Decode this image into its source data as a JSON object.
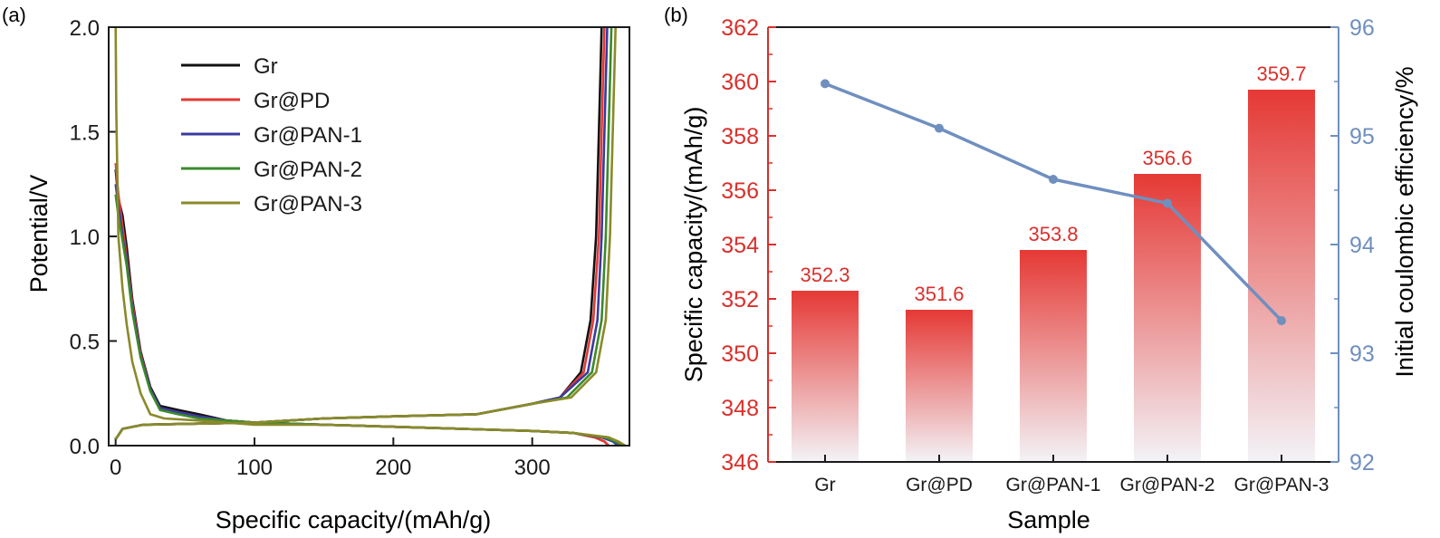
{
  "colors": {
    "axis": "#1a1a1a",
    "red": "#d9302c",
    "bar_top": "#e53935",
    "bar_bottom": "#f3f3f7",
    "blue": "#6f8fbf"
  },
  "chart_data": [
    {
      "type": "line",
      "panel_label": "(a)",
      "title": "",
      "xlabel": "Specific capacity/(mAh/g)",
      "ylabel": "Potential/V",
      "xlim": [
        -5,
        370
      ],
      "ylim": [
        0,
        2.0
      ],
      "xticks": [
        0,
        100,
        200,
        300
      ],
      "xtick_labels": [
        "0",
        "100",
        "200",
        "300"
      ],
      "yticks": [
        0,
        0.5,
        1.0,
        1.5,
        2.0
      ],
      "ytick_labels": [
        "0.0",
        "0.5",
        "1.0",
        "1.5",
        "2.0"
      ],
      "legend_position": "upper-left",
      "series": [
        {
          "name": "Gr",
          "color": "#111111",
          "discharge": [
            [
              0,
              1.32
            ],
            [
              2,
              1.18
            ],
            [
              5,
              1.1
            ],
            [
              8,
              0.95
            ],
            [
              12,
              0.7
            ],
            [
              18,
              0.45
            ],
            [
              25,
              0.28
            ],
            [
              32,
              0.19
            ],
            [
              45,
              0.17
            ],
            [
              60,
              0.15
            ],
            [
              80,
              0.12
            ],
            [
              100,
              0.11
            ],
            [
              150,
              0.1
            ],
            [
              200,
              0.09
            ],
            [
              250,
              0.08
            ],
            [
              300,
              0.07
            ],
            [
              330,
              0.06
            ],
            [
              345,
              0.04
            ],
            [
              352,
              0.02
            ],
            [
              355,
              0.0
            ]
          ],
          "charge": [
            [
              0,
              0.03
            ],
            [
              5,
              0.08
            ],
            [
              20,
              0.1
            ],
            [
              60,
              0.105
            ],
            [
              100,
              0.11
            ],
            [
              150,
              0.13
            ],
            [
              200,
              0.14
            ],
            [
              260,
              0.15
            ],
            [
              300,
              0.2
            ],
            [
              320,
              0.23
            ],
            [
              335,
              0.35
            ],
            [
              342,
              0.6
            ],
            [
              346,
              1.0
            ],
            [
              348,
              1.5
            ],
            [
              350,
              2.0
            ]
          ]
        },
        {
          "name": "Gr@PD",
          "color": "#e53935",
          "discharge": [
            [
              0,
              1.35
            ],
            [
              2,
              1.2
            ],
            [
              5,
              1.05
            ],
            [
              8,
              0.9
            ],
            [
              12,
              0.68
            ],
            [
              18,
              0.44
            ],
            [
              25,
              0.27
            ],
            [
              32,
              0.18
            ],
            [
              45,
              0.16
            ],
            [
              60,
              0.14
            ],
            [
              80,
              0.12
            ],
            [
              100,
              0.11
            ],
            [
              150,
              0.1
            ],
            [
              200,
              0.09
            ],
            [
              250,
              0.08
            ],
            [
              300,
              0.07
            ],
            [
              330,
              0.06
            ],
            [
              345,
              0.04
            ],
            [
              352,
              0.02
            ],
            [
              355,
              0.0
            ]
          ],
          "charge": [
            [
              0,
              0.03
            ],
            [
              5,
              0.08
            ],
            [
              20,
              0.1
            ],
            [
              60,
              0.105
            ],
            [
              100,
              0.11
            ],
            [
              150,
              0.13
            ],
            [
              200,
              0.14
            ],
            [
              260,
              0.15
            ],
            [
              300,
              0.2
            ],
            [
              320,
              0.23
            ],
            [
              337,
              0.35
            ],
            [
              344,
              0.6
            ],
            [
              348,
              1.0
            ],
            [
              350,
              1.5
            ],
            [
              352,
              2.0
            ]
          ]
        },
        {
          "name": "Gr@PAN-1",
          "color": "#3a3aa0",
          "discharge": [
            [
              0,
              1.25
            ],
            [
              2,
              1.15
            ],
            [
              5,
              1.0
            ],
            [
              8,
              0.88
            ],
            [
              12,
              0.66
            ],
            [
              18,
              0.43
            ],
            [
              25,
              0.27
            ],
            [
              32,
              0.18
            ],
            [
              45,
              0.16
            ],
            [
              60,
              0.14
            ],
            [
              80,
              0.12
            ],
            [
              100,
              0.11
            ],
            [
              150,
              0.1
            ],
            [
              200,
              0.09
            ],
            [
              250,
              0.08
            ],
            [
              300,
              0.07
            ],
            [
              330,
              0.06
            ],
            [
              350,
              0.04
            ],
            [
              358,
              0.02
            ],
            [
              362,
              0.0
            ]
          ],
          "charge": [
            [
              0,
              0.03
            ],
            [
              5,
              0.08
            ],
            [
              20,
              0.1
            ],
            [
              60,
              0.105
            ],
            [
              100,
              0.11
            ],
            [
              150,
              0.13
            ],
            [
              200,
              0.14
            ],
            [
              260,
              0.15
            ],
            [
              300,
              0.2
            ],
            [
              320,
              0.23
            ],
            [
              340,
              0.35
            ],
            [
              347,
              0.6
            ],
            [
              350,
              1.0
            ],
            [
              352,
              1.5
            ],
            [
              354,
              2.0
            ]
          ]
        },
        {
          "name": "Gr@PAN-2",
          "color": "#3a8a2a",
          "discharge": [
            [
              0,
              1.2
            ],
            [
              2,
              1.1
            ],
            [
              5,
              0.98
            ],
            [
              8,
              0.86
            ],
            [
              12,
              0.64
            ],
            [
              18,
              0.42
            ],
            [
              25,
              0.26
            ],
            [
              32,
              0.17
            ],
            [
              45,
              0.15
            ],
            [
              60,
              0.13
            ],
            [
              80,
              0.12
            ],
            [
              100,
              0.11
            ],
            [
              150,
              0.1
            ],
            [
              200,
              0.09
            ],
            [
              250,
              0.08
            ],
            [
              300,
              0.07
            ],
            [
              330,
              0.06
            ],
            [
              352,
              0.04
            ],
            [
              360,
              0.02
            ],
            [
              365,
              0.0
            ]
          ],
          "charge": [
            [
              0,
              0.03
            ],
            [
              5,
              0.08
            ],
            [
              20,
              0.1
            ],
            [
              60,
              0.105
            ],
            [
              100,
              0.11
            ],
            [
              150,
              0.13
            ],
            [
              200,
              0.14
            ],
            [
              260,
              0.15
            ],
            [
              300,
              0.2
            ],
            [
              325,
              0.23
            ],
            [
              343,
              0.35
            ],
            [
              350,
              0.6
            ],
            [
              353,
              1.0
            ],
            [
              355,
              1.5
            ],
            [
              357,
              2.0
            ]
          ]
        },
        {
          "name": "Gr@PAN-3",
          "color": "#8a8a2a",
          "discharge": [
            [
              0,
              2.0
            ],
            [
              0.5,
              1.6
            ],
            [
              2,
              1.0
            ],
            [
              5,
              0.75
            ],
            [
              8,
              0.58
            ],
            [
              12,
              0.4
            ],
            [
              18,
              0.25
            ],
            [
              25,
              0.15
            ],
            [
              35,
              0.13
            ],
            [
              60,
              0.12
            ],
            [
              80,
              0.11
            ],
            [
              100,
              0.1
            ],
            [
              150,
              0.1
            ],
            [
              200,
              0.09
            ],
            [
              250,
              0.08
            ],
            [
              300,
              0.07
            ],
            [
              330,
              0.06
            ],
            [
              355,
              0.04
            ],
            [
              362,
              0.02
            ],
            [
              367,
              0.0
            ]
          ],
          "charge": [
            [
              0,
              0.03
            ],
            [
              5,
              0.08
            ],
            [
              20,
              0.1
            ],
            [
              60,
              0.105
            ],
            [
              100,
              0.11
            ],
            [
              150,
              0.13
            ],
            [
              200,
              0.14
            ],
            [
              260,
              0.15
            ],
            [
              300,
              0.2
            ],
            [
              328,
              0.23
            ],
            [
              346,
              0.35
            ],
            [
              353,
              0.6
            ],
            [
              356,
              1.0
            ],
            [
              358,
              1.5
            ],
            [
              360,
              2.0
            ]
          ]
        }
      ]
    },
    {
      "type": "bar",
      "panel_label": "(b)",
      "title": "",
      "xlabel": "Sample",
      "ylabel": "Specific capacity/(mAh/g)",
      "y2label": "Initial coulombic efficiency/%",
      "ylim": [
        346,
        362
      ],
      "yticks": [
        346,
        348,
        350,
        352,
        354,
        356,
        358,
        360,
        362
      ],
      "ytick_labels": [
        "346",
        "348",
        "350",
        "352",
        "354",
        "356",
        "358",
        "360",
        "362"
      ],
      "y2lim": [
        92,
        96
      ],
      "y2ticks": [
        92,
        93,
        94,
        95,
        96
      ],
      "y2tick_labels": [
        "92",
        "93",
        "94",
        "95",
        "96"
      ],
      "categories": [
        "Gr",
        "Gr@PD",
        "Gr@PAN-1",
        "Gr@PAN-2",
        "Gr@PAN-3"
      ],
      "values": [
        352.3,
        351.6,
        353.8,
        356.6,
        359.7
      ],
      "value_labels": [
        "352.3",
        "351.6",
        "353.8",
        "356.6",
        "359.7"
      ],
      "efficiency": [
        95.48,
        95.07,
        94.6,
        94.38,
        93.3
      ]
    }
  ]
}
